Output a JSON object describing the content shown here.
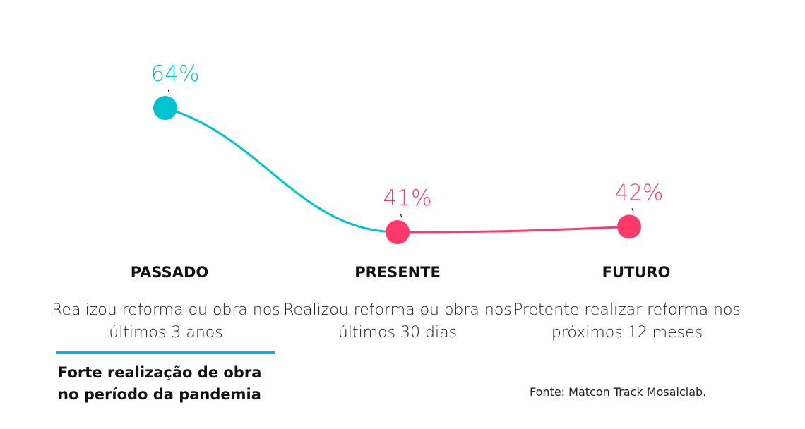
{
  "chart_data": {
    "type": "line",
    "categories": [
      "PASSADO",
      "PRESENTE",
      "FUTURO"
    ],
    "descriptions": [
      "Realizou reforma ou obra nos últimos 3 anos",
      "Realizou reforma ou obra nos últimos 30 dias",
      "Pretente realizar reforma nos próximos 12 meses"
    ],
    "values": [
      64,
      41,
      42
    ],
    "labels": [
      "64%",
      "41%",
      "42%"
    ],
    "unit": "%",
    "point_colors": [
      "#00C3D0",
      "#FF3A6B",
      "#FF3A6B"
    ],
    "grid": false
  },
  "note": "Forte realização de obra no período da pandemia",
  "source": "Fonte: Matcon Track Mosaiclab.",
  "colors": {
    "teal": "#00C3D0",
    "pink": "#FF3A6B",
    "divider": "#14A9E6"
  }
}
